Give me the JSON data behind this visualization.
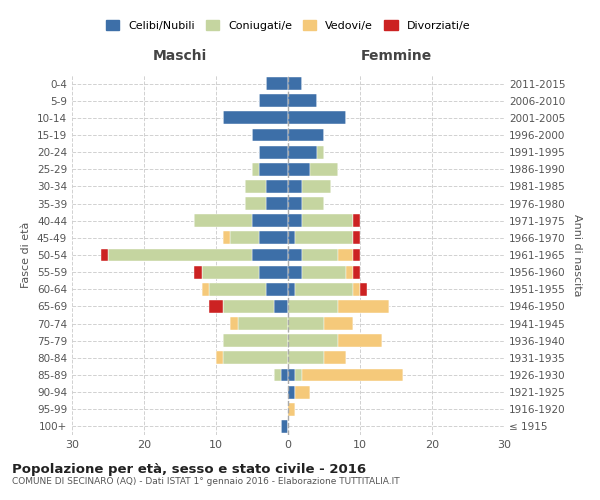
{
  "age_groups": [
    "100+",
    "95-99",
    "90-94",
    "85-89",
    "80-84",
    "75-79",
    "70-74",
    "65-69",
    "60-64",
    "55-59",
    "50-54",
    "45-49",
    "40-44",
    "35-39",
    "30-34",
    "25-29",
    "20-24",
    "15-19",
    "10-14",
    "5-9",
    "0-4"
  ],
  "birth_years": [
    "≤ 1915",
    "1916-1920",
    "1921-1925",
    "1926-1930",
    "1931-1935",
    "1936-1940",
    "1941-1945",
    "1946-1950",
    "1951-1955",
    "1956-1960",
    "1961-1965",
    "1966-1970",
    "1971-1975",
    "1976-1980",
    "1981-1985",
    "1986-1990",
    "1991-1995",
    "1996-2000",
    "2001-2005",
    "2006-2010",
    "2011-2015"
  ],
  "male": {
    "celibi": [
      1,
      0,
      0,
      1,
      0,
      0,
      0,
      2,
      3,
      4,
      5,
      4,
      5,
      3,
      3,
      4,
      4,
      5,
      9,
      4,
      3
    ],
    "coniugati": [
      0,
      0,
      0,
      1,
      9,
      9,
      7,
      7,
      8,
      8,
      20,
      4,
      8,
      3,
      3,
      1,
      0,
      0,
      0,
      0,
      0
    ],
    "vedovi": [
      0,
      0,
      0,
      0,
      1,
      0,
      1,
      0,
      1,
      0,
      0,
      1,
      0,
      0,
      0,
      0,
      0,
      0,
      0,
      0,
      0
    ],
    "divorziati": [
      0,
      0,
      0,
      0,
      0,
      0,
      0,
      2,
      0,
      1,
      1,
      0,
      0,
      0,
      0,
      0,
      0,
      0,
      0,
      0,
      0
    ]
  },
  "female": {
    "nubili": [
      0,
      0,
      1,
      1,
      0,
      0,
      0,
      0,
      1,
      2,
      2,
      1,
      2,
      2,
      2,
      3,
      4,
      5,
      8,
      4,
      2
    ],
    "coniugate": [
      0,
      0,
      0,
      1,
      5,
      7,
      5,
      7,
      8,
      6,
      5,
      8,
      7,
      3,
      4,
      4,
      1,
      0,
      0,
      0,
      0
    ],
    "vedove": [
      0,
      1,
      2,
      14,
      3,
      6,
      4,
      7,
      1,
      1,
      2,
      0,
      0,
      0,
      0,
      0,
      0,
      0,
      0,
      0,
      0
    ],
    "divorziate": [
      0,
      0,
      0,
      0,
      0,
      0,
      0,
      0,
      1,
      1,
      1,
      1,
      1,
      0,
      0,
      0,
      0,
      0,
      0,
      0,
      0
    ]
  },
  "colors": {
    "celibi": "#3d6fa8",
    "coniugati": "#c5d5a0",
    "vedovi": "#f5c97a",
    "divorziati": "#cc2222"
  },
  "xlim": 30,
  "title": "Popolazione per età, sesso e stato civile - 2016",
  "subtitle": "COMUNE DI SECINARO (AQ) - Dati ISTAT 1° gennaio 2016 - Elaborazione TUTTITALIA.IT",
  "ylabel_left": "Fasce di età",
  "ylabel_right": "Anni di nascita",
  "xlabel_left": "Maschi",
  "xlabel_right": "Femmine",
  "legend_labels": [
    "Celibi/Nubili",
    "Coniugati/e",
    "Vedovi/e",
    "Divorziati/e"
  ],
  "background_color": "#ffffff",
  "grid_color": "#cccccc"
}
